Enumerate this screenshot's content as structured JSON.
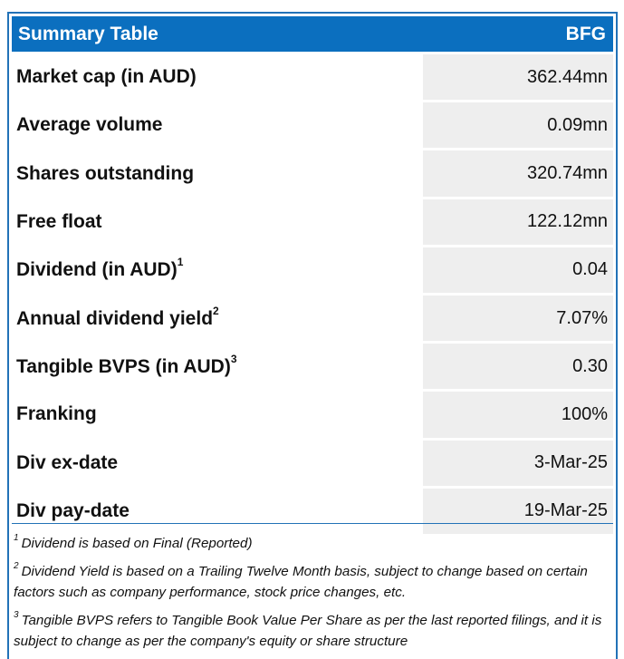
{
  "header": {
    "title": "Summary Table",
    "ticker": "BFG"
  },
  "rows": [
    {
      "label": "Market cap (in AUD)",
      "sup": "",
      "value": "362.44mn"
    },
    {
      "label": "Average volume",
      "sup": "",
      "value": "0.09mn"
    },
    {
      "label": "Shares outstanding",
      "sup": "",
      "value": "320.74mn"
    },
    {
      "label": "Free float",
      "sup": "",
      "value": "122.12mn"
    },
    {
      "label": "Dividend (in AUD)",
      "sup": "1",
      "value": "0.04"
    },
    {
      "label": "Annual dividend yield",
      "sup": "2",
      "value": "7.07%"
    },
    {
      "label": "Tangible BVPS (in AUD)",
      "sup": "3",
      "value": "0.30"
    },
    {
      "label": "Franking",
      "sup": "",
      "value": "100%"
    },
    {
      "label": "Div ex-date",
      "sup": "",
      "value": "3-Mar-25"
    },
    {
      "label": "Div pay-date",
      "sup": "",
      "value": "19-Mar-25"
    }
  ],
  "notes": [
    {
      "num": "1",
      "text": "Dividend is based on Final (Reported)"
    },
    {
      "num": "2",
      "text": "Dividend Yield is based on a Trailing Twelve Month basis, subject to change based on certain factors such as company performance, stock price changes, etc."
    },
    {
      "num": "3",
      "text": "Tangible BVPS refers to Tangible Book Value Per Share as per the last reported filings, and it is subject to change as per the company's equity or share structure"
    }
  ]
}
